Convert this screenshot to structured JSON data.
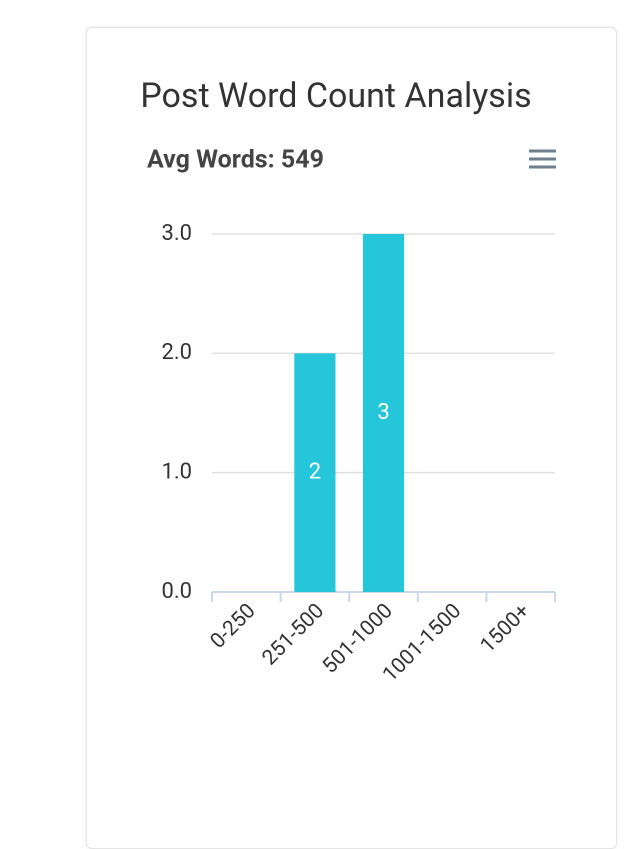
{
  "chart_data": {
    "type": "bar",
    "title": "Post Word Count Analysis",
    "subtitle": "Avg Words: 549",
    "categories": [
      "0-250",
      "251-500",
      "501-1000",
      "1001-1500",
      "1500+"
    ],
    "values": [
      0,
      2,
      3,
      0,
      0
    ],
    "color": "#26c6da",
    "ylim": [
      0,
      3
    ],
    "yticks": [
      {
        "value": 0,
        "label": "0.0"
      },
      {
        "value": 1,
        "label": "1.0"
      },
      {
        "value": 2,
        "label": "2.0"
      },
      {
        "value": 3,
        "label": "3.0"
      }
    ],
    "grid": true
  }
}
